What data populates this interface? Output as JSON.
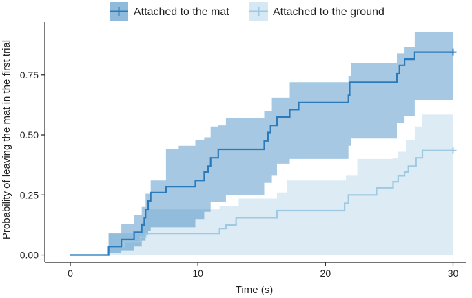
{
  "chart_data": {
    "type": "line",
    "subtype": "step (Kaplan-Meier cumulative incidence) with confidence bands",
    "title": "",
    "xlabel": "Time (s)",
    "ylabel": "Probability of leaving the mat in the first trial",
    "xlim": [
      -2,
      31
    ],
    "ylim": [
      -0.03,
      0.97
    ],
    "xticks": [
      0,
      10,
      20,
      30
    ],
    "xtick_labels": [
      "0",
      "10",
      "20",
      "30"
    ],
    "yticks": [
      0,
      0.25,
      0.5,
      0.75
    ],
    "ytick_labels": [
      "0.00",
      "0.25",
      "0.50",
      "0.75"
    ],
    "grid": false,
    "legend_position": "top",
    "series": [
      {
        "name": "Attached to the mat",
        "line_color": "#2b7bba",
        "band_color": "#2b7bba",
        "band_opacity": 0.42,
        "end_marker": "+",
        "steps": [
          [
            0,
            0.0
          ],
          [
            3.0,
            0.035
          ],
          [
            3.9,
            0.035
          ],
          [
            4.0,
            0.065
          ],
          [
            5.0,
            0.095
          ],
          [
            5.6,
            0.125
          ],
          [
            5.8,
            0.155
          ],
          [
            5.9,
            0.19
          ],
          [
            6.1,
            0.225
          ],
          [
            6.3,
            0.26
          ],
          [
            7.5,
            0.285
          ],
          [
            9.8,
            0.31
          ],
          [
            10.5,
            0.345
          ],
          [
            10.8,
            0.37
          ],
          [
            11.0,
            0.405
          ],
          [
            11.6,
            0.44
          ],
          [
            15.2,
            0.475
          ],
          [
            15.5,
            0.51
          ],
          [
            15.7,
            0.54
          ],
          [
            16.2,
            0.575
          ],
          [
            17.2,
            0.605
          ],
          [
            17.9,
            0.635
          ],
          [
            21.8,
            0.665
          ],
          [
            21.9,
            0.72
          ],
          [
            25.6,
            0.755
          ],
          [
            25.8,
            0.79
          ],
          [
            26.2,
            0.815
          ],
          [
            27.0,
            0.845
          ],
          [
            30.0,
            0.845
          ]
        ],
        "lower": [
          [
            3.0,
            0.0
          ],
          [
            4.0,
            0.01
          ],
          [
            5.0,
            0.02
          ],
          [
            5.6,
            0.035
          ],
          [
            5.9,
            0.06
          ],
          [
            6.1,
            0.085
          ],
          [
            6.3,
            0.1
          ],
          [
            7.5,
            0.115
          ],
          [
            10.5,
            0.15
          ],
          [
            11.0,
            0.18
          ],
          [
            11.6,
            0.22
          ],
          [
            15.2,
            0.25
          ],
          [
            15.7,
            0.3
          ],
          [
            16.2,
            0.33
          ],
          [
            17.2,
            0.38
          ],
          [
            18.0,
            0.4
          ],
          [
            21.9,
            0.455
          ],
          [
            25.6,
            0.485
          ],
          [
            26.2,
            0.55
          ],
          [
            27.0,
            0.58
          ],
          [
            27.8,
            0.645
          ],
          [
            30.0,
            0.645
          ]
        ],
        "upper": [
          [
            3.0,
            0.09
          ],
          [
            4.0,
            0.13
          ],
          [
            5.0,
            0.165
          ],
          [
            5.6,
            0.2
          ],
          [
            5.9,
            0.255
          ],
          [
            6.3,
            0.31
          ],
          [
            7.5,
            0.44
          ],
          [
            8.5,
            0.455
          ],
          [
            9.8,
            0.48
          ],
          [
            10.5,
            0.49
          ],
          [
            11.0,
            0.535
          ],
          [
            11.6,
            0.54
          ],
          [
            12.2,
            0.57
          ],
          [
            15.2,
            0.6
          ],
          [
            15.8,
            0.655
          ],
          [
            17.2,
            0.72
          ],
          [
            21.8,
            0.745
          ],
          [
            22.0,
            0.8
          ],
          [
            25.6,
            0.84
          ],
          [
            26.2,
            0.865
          ],
          [
            27.0,
            0.93
          ],
          [
            30.0,
            0.93
          ]
        ]
      },
      {
        "name": "Attached to the ground",
        "line_color": "#9ec9e2",
        "band_color": "#c6dfee",
        "band_opacity": 0.62,
        "end_marker": "+",
        "steps": [
          [
            0,
            0.0
          ],
          [
            3.0,
            0.035
          ],
          [
            4.2,
            0.055
          ],
          [
            5.5,
            0.075
          ],
          [
            5.9,
            0.09
          ],
          [
            11.7,
            0.11
          ],
          [
            12.2,
            0.125
          ],
          [
            13.0,
            0.155
          ],
          [
            16.2,
            0.185
          ],
          [
            21.5,
            0.215
          ],
          [
            21.8,
            0.25
          ],
          [
            24.0,
            0.28
          ],
          [
            25.3,
            0.305
          ],
          [
            25.7,
            0.33
          ],
          [
            26.2,
            0.345
          ],
          [
            26.5,
            0.37
          ],
          [
            27.1,
            0.405
          ],
          [
            27.6,
            0.435
          ],
          [
            30.0,
            0.435
          ]
        ],
        "lower": [
          [
            3.0,
            0.0
          ],
          [
            30.0,
            0.0
          ]
        ],
        "upper": [
          [
            3.0,
            0.09
          ],
          [
            5.5,
            0.135
          ],
          [
            5.9,
            0.19
          ],
          [
            11.7,
            0.205
          ],
          [
            13.2,
            0.235
          ],
          [
            16.2,
            0.26
          ],
          [
            17.0,
            0.31
          ],
          [
            21.6,
            0.33
          ],
          [
            22.5,
            0.4
          ],
          [
            25.3,
            0.405
          ],
          [
            25.7,
            0.43
          ],
          [
            26.3,
            0.48
          ],
          [
            27.0,
            0.535
          ],
          [
            27.6,
            0.585
          ],
          [
            30.0,
            0.585
          ]
        ]
      }
    ]
  }
}
